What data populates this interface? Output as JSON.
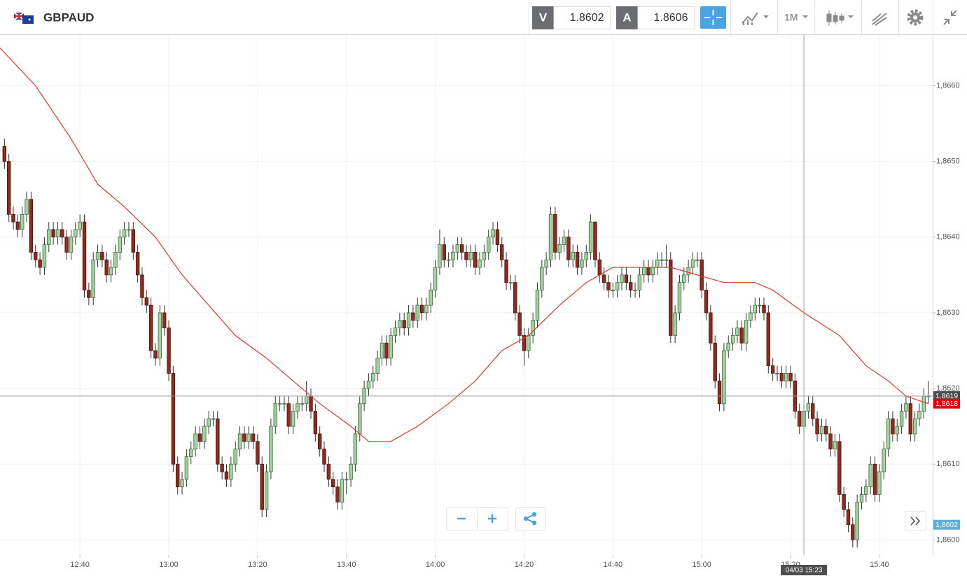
{
  "toolbar": {
    "symbol": "GBPAUD",
    "sell_label": "V",
    "sell_price": 1.8602,
    "buy_label": "A",
    "buy_price": 1.8606,
    "timeframe": "1M"
  },
  "chart_data": {
    "type": "candlestick",
    "x": [
      "12:23",
      "12:24",
      "12:25",
      "12:26",
      "12:27",
      "12:28",
      "12:29",
      "12:30",
      "12:31",
      "12:32",
      "12:33",
      "12:34",
      "12:35",
      "12:36",
      "12:37",
      "12:38",
      "12:39",
      "12:40",
      "12:41",
      "12:42",
      "12:43",
      "12:44",
      "12:45",
      "12:46",
      "12:47",
      "12:48",
      "12:49",
      "12:50",
      "12:51",
      "12:52",
      "12:53",
      "12:54",
      "12:55",
      "12:56",
      "12:57",
      "12:58",
      "12:59",
      "13:00",
      "13:01",
      "13:02",
      "13:03",
      "13:04",
      "13:05",
      "13:06",
      "13:07",
      "13:08",
      "13:09",
      "13:10",
      "13:11",
      "13:12",
      "13:13",
      "13:14",
      "13:15",
      "13:16",
      "13:17",
      "13:18",
      "13:19",
      "13:20",
      "13:21",
      "13:22",
      "13:23",
      "13:24",
      "13:25",
      "13:26",
      "13:27",
      "13:28",
      "13:29",
      "13:30",
      "13:31",
      "13:32",
      "13:33",
      "13:34",
      "13:35",
      "13:36",
      "13:37",
      "13:38",
      "13:39",
      "13:40",
      "13:41",
      "13:42",
      "13:43",
      "13:44",
      "13:45",
      "13:46",
      "13:47",
      "13:48",
      "13:49",
      "13:50",
      "13:51",
      "13:52",
      "13:53",
      "13:54",
      "13:55",
      "13:56",
      "13:57",
      "13:58",
      "13:59",
      "14:00",
      "14:01",
      "14:02",
      "14:03",
      "14:04",
      "14:05",
      "14:06",
      "14:07",
      "14:08",
      "14:09",
      "14:10",
      "14:11",
      "14:12",
      "14:13",
      "14:14",
      "14:15",
      "14:16",
      "14:17",
      "14:18",
      "14:19",
      "14:20",
      "14:21",
      "14:22",
      "14:23",
      "14:24",
      "14:25",
      "14:26",
      "14:27",
      "14:28",
      "14:29",
      "14:30",
      "14:31",
      "14:32",
      "14:33",
      "14:34",
      "14:35",
      "14:36",
      "14:37",
      "14:38",
      "14:39",
      "14:40",
      "14:41",
      "14:42",
      "14:43",
      "14:44",
      "14:45",
      "14:46",
      "14:47",
      "14:48",
      "14:49",
      "14:50",
      "14:51",
      "14:52",
      "14:53",
      "14:54",
      "14:55",
      "14:56",
      "14:57",
      "14:58",
      "14:59",
      "15:00",
      "15:01",
      "15:02",
      "15:03",
      "15:04",
      "15:05",
      "15:06",
      "15:07",
      "15:08",
      "15:09",
      "15:10",
      "15:11",
      "15:12",
      "15:13",
      "15:14",
      "15:15",
      "15:16",
      "15:17",
      "15:18",
      "15:19",
      "15:20",
      "15:21",
      "15:22",
      "15:23",
      "15:24",
      "15:25",
      "15:26",
      "15:27",
      "15:28",
      "15:29",
      "15:30",
      "15:31",
      "15:32",
      "15:33",
      "15:34",
      "15:35",
      "15:36",
      "15:37",
      "15:38",
      "15:39",
      "15:40",
      "15:41",
      "15:42",
      "15:43",
      "15:44",
      "15:45",
      "15:46",
      "15:47",
      "15:48",
      "15:49",
      "15:50",
      "15:51"
    ],
    "open": [
      1.8652,
      1.865,
      1.8643,
      1.8642,
      1.8641,
      1.8643,
      1.8645,
      1.8638,
      1.8637,
      1.8636,
      1.8639,
      1.8641,
      1.864,
      1.8641,
      1.864,
      1.8638,
      1.864,
      1.8641,
      1.8642,
      1.8633,
      1.8632,
      1.8637,
      1.8638,
      1.8637,
      1.8635,
      1.8636,
      1.8638,
      1.864,
      1.8641,
      1.8641,
      1.8638,
      1.8635,
      1.8632,
      1.8631,
      1.8625,
      1.8624,
      1.863,
      1.8628,
      1.8622,
      1.861,
      1.8607,
      1.8608,
      1.8611,
      1.8612,
      1.8614,
      1.8613,
      1.8615,
      1.8616,
      1.8616,
      1.861,
      1.8609,
      1.8608,
      1.861,
      1.8612,
      1.8614,
      1.8613,
      1.8614,
      1.8613,
      1.861,
      1.8604,
      1.8609,
      1.8615,
      1.8618,
      1.8618,
      1.8618,
      1.8615,
      1.8617,
      1.8618,
      1.8618,
      1.8619,
      1.8617,
      1.8614,
      1.8612,
      1.861,
      1.8608,
      1.8607,
      1.8605,
      1.8608,
      1.8608,
      1.861,
      1.8614,
      1.8618,
      1.862,
      1.8621,
      1.8622,
      1.8624,
      1.8626,
      1.8624,
      1.8627,
      1.8628,
      1.8629,
      1.8628,
      1.863,
      1.8629,
      1.8631,
      1.863,
      1.8631,
      1.8633,
      1.8636,
      1.8639,
      1.8637,
      1.8637,
      1.8638,
      1.8639,
      1.8638,
      1.8637,
      1.8638,
      1.8636,
      1.8637,
      1.8638,
      1.864,
      1.8641,
      1.8639,
      1.8637,
      1.8634,
      1.8634,
      1.863,
      1.8627,
      1.8625,
      1.8627,
      1.8629,
      1.8633,
      1.8636,
      1.8637,
      1.8643,
      1.8638,
      1.8639,
      1.864,
      1.8637,
      1.8638,
      1.8636,
      1.8637,
      1.8638,
      1.8642,
      1.8637,
      1.8635,
      1.8634,
      1.8633,
      1.8633,
      1.8634,
      1.8635,
      1.8634,
      1.8633,
      1.8633,
      1.8635,
      1.8636,
      1.8635,
      1.8636,
      1.8637,
      1.8637,
      1.8637,
      1.8627,
      1.863,
      1.8634,
      1.8635,
      1.8636,
      1.8637,
      1.8637,
      1.8633,
      1.863,
      1.8626,
      1.8621,
      1.8618,
      1.8625,
      1.8626,
      1.8627,
      1.8628,
      1.8626,
      1.8629,
      1.863,
      1.8631,
      1.8631,
      1.863,
      1.8623,
      1.8622,
      1.8622,
      1.8621,
      1.8622,
      1.8621,
      1.8617,
      1.8615,
      1.8617,
      1.8618,
      1.8616,
      1.8614,
      1.8615,
      1.8614,
      1.8612,
      1.8613,
      1.8606,
      1.8604,
      1.8602,
      1.86,
      1.8605,
      1.8606,
      1.8607,
      1.861,
      1.8606,
      1.8609,
      1.8612,
      1.8616,
      1.8614,
      1.8615,
      1.8617,
      1.8618,
      1.8614,
      1.8616,
      1.8617,
      1.8619
    ],
    "high": [
      1.8653,
      1.8651,
      1.8644,
      1.8643,
      1.8644,
      1.8646,
      1.8646,
      1.8639,
      1.8638,
      1.864,
      1.8642,
      1.8642,
      1.8642,
      1.8642,
      1.8641,
      1.8641,
      1.8642,
      1.8643,
      1.8643,
      1.8634,
      1.8638,
      1.8639,
      1.8639,
      1.8638,
      1.8637,
      1.8639,
      1.8641,
      1.8642,
      1.8642,
      1.8642,
      1.8639,
      1.8636,
      1.8633,
      1.8632,
      1.8626,
      1.8631,
      1.8631,
      1.8629,
      1.8623,
      1.8611,
      1.8609,
      1.8612,
      1.8613,
      1.8615,
      1.8615,
      1.8616,
      1.8617,
      1.8617,
      1.8617,
      1.8611,
      1.861,
      1.8611,
      1.8613,
      1.8615,
      1.8615,
      1.8615,
      1.8615,
      1.8614,
      1.8611,
      1.861,
      1.8616,
      1.8619,
      1.8619,
      1.8619,
      1.8619,
      1.8618,
      1.8619,
      1.8619,
      1.8621,
      1.862,
      1.8618,
      1.8615,
      1.8613,
      1.8611,
      1.8609,
      1.8608,
      1.8609,
      1.8609,
      1.8611,
      1.8615,
      1.8619,
      1.8621,
      1.8622,
      1.8623,
      1.8625,
      1.8627,
      1.8627,
      1.8628,
      1.8629,
      1.863,
      1.863,
      1.8631,
      1.8631,
      1.8632,
      1.8632,
      1.8632,
      1.8634,
      1.8637,
      1.8641,
      1.864,
      1.8638,
      1.8639,
      1.864,
      1.864,
      1.8639,
      1.8639,
      1.8639,
      1.8638,
      1.8639,
      1.8641,
      1.8642,
      1.8642,
      1.864,
      1.8638,
      1.8635,
      1.8635,
      1.8631,
      1.8628,
      1.8628,
      1.863,
      1.8634,
      1.8637,
      1.8638,
      1.8644,
      1.8644,
      1.864,
      1.8641,
      1.8641,
      1.8639,
      1.8639,
      1.8638,
      1.8639,
      1.8643,
      1.8642,
      1.8638,
      1.8636,
      1.8635,
      1.8634,
      1.8635,
      1.8636,
      1.8636,
      1.8635,
      1.8634,
      1.8636,
      1.8637,
      1.8637,
      1.8637,
      1.8638,
      1.8638,
      1.8639,
      1.8638,
      1.8631,
      1.8635,
      1.8636,
      1.8637,
      1.8638,
      1.8638,
      1.8638,
      1.8634,
      1.8631,
      1.8627,
      1.8622,
      1.8626,
      1.8627,
      1.8628,
      1.8629,
      1.8629,
      1.863,
      1.8631,
      1.8632,
      1.8632,
      1.8632,
      1.8631,
      1.8624,
      1.8623,
      1.8623,
      1.8623,
      1.8623,
      1.8622,
      1.8618,
      1.8618,
      1.8619,
      1.8619,
      1.8617,
      1.8616,
      1.8616,
      1.8615,
      1.8614,
      1.8614,
      1.8607,
      1.8605,
      1.8603,
      1.8606,
      1.8607,
      1.8608,
      1.8611,
      1.8611,
      1.861,
      1.8613,
      1.8617,
      1.8617,
      1.8616,
      1.8618,
      1.8619,
      1.8619,
      1.8617,
      1.8618,
      1.862,
      1.8621
    ],
    "low": [
      1.8649,
      1.8642,
      1.8641,
      1.864,
      1.864,
      1.8642,
      1.8637,
      1.8636,
      1.8635,
      1.8635,
      1.8638,
      1.8639,
      1.8639,
      1.8639,
      1.8637,
      1.8637,
      1.8639,
      1.864,
      1.8632,
      1.8631,
      1.8631,
      1.8636,
      1.8636,
      1.8634,
      1.8634,
      1.8635,
      1.8637,
      1.8639,
      1.864,
      1.8637,
      1.8634,
      1.8631,
      1.863,
      1.8624,
      1.8623,
      1.8623,
      1.8627,
      1.8621,
      1.8609,
      1.8606,
      1.8606,
      1.8607,
      1.861,
      1.8611,
      1.8612,
      1.8612,
      1.8614,
      1.8615,
      1.8609,
      1.8608,
      1.8607,
      1.8607,
      1.8609,
      1.8611,
      1.8612,
      1.8612,
      1.8612,
      1.8609,
      1.8603,
      1.8603,
      1.8608,
      1.8614,
      1.8617,
      1.8617,
      1.8614,
      1.8614,
      1.8616,
      1.8617,
      1.8617,
      1.8616,
      1.8613,
      1.8611,
      1.8609,
      1.8607,
      1.8606,
      1.8604,
      1.8604,
      1.8606,
      1.8607,
      1.8609,
      1.8613,
      1.8617,
      1.8619,
      1.862,
      1.8621,
      1.8623,
      1.8623,
      1.8623,
      1.8626,
      1.8627,
      1.8627,
      1.8627,
      1.8628,
      1.8628,
      1.8629,
      1.8629,
      1.863,
      1.8632,
      1.8635,
      1.8636,
      1.8636,
      1.8636,
      1.8637,
      1.8637,
      1.8636,
      1.8636,
      1.8635,
      1.8635,
      1.8636,
      1.8637,
      1.8639,
      1.8638,
      1.8636,
      1.8633,
      1.8633,
      1.8629,
      1.8626,
      1.8623,
      1.8624,
      1.8626,
      1.8628,
      1.8632,
      1.8635,
      1.8636,
      1.8637,
      1.8637,
      1.8638,
      1.8636,
      1.8636,
      1.8635,
      1.8635,
      1.8636,
      1.8637,
      1.8636,
      1.8634,
      1.8633,
      1.8632,
      1.8632,
      1.8632,
      1.8633,
      1.8633,
      1.8632,
      1.8632,
      1.8632,
      1.8634,
      1.8634,
      1.8634,
      1.8635,
      1.8636,
      1.8636,
      1.8626,
      1.8626,
      1.8629,
      1.8633,
      1.8634,
      1.8635,
      1.8636,
      1.8632,
      1.8629,
      1.8625,
      1.862,
      1.8617,
      1.8617,
      1.8624,
      1.8625,
      1.8626,
      1.8625,
      1.8625,
      1.8628,
      1.8629,
      1.863,
      1.8629,
      1.8622,
      1.8621,
      1.8621,
      1.862,
      1.862,
      1.862,
      1.8616,
      1.8614,
      1.8614,
      1.8616,
      1.8615,
      1.8613,
      1.8613,
      1.8613,
      1.8611,
      1.8611,
      1.8605,
      1.8603,
      1.8601,
      1.8599,
      1.8599,
      1.8604,
      1.8605,
      1.8606,
      1.8605,
      1.8605,
      1.8608,
      1.8611,
      1.8613,
      1.8613,
      1.8614,
      1.8616,
      1.8613,
      1.8613,
      1.8615,
      1.8616,
      1.8618
    ],
    "close": [
      1.865,
      1.8643,
      1.8642,
      1.8641,
      1.8643,
      1.8645,
      1.8638,
      1.8637,
      1.8636,
      1.8639,
      1.8641,
      1.864,
      1.8641,
      1.864,
      1.8638,
      1.864,
      1.8641,
      1.8642,
      1.8633,
      1.8632,
      1.8637,
      1.8638,
      1.8637,
      1.8635,
      1.8636,
      1.8638,
      1.864,
      1.8641,
      1.8641,
      1.8638,
      1.8635,
      1.8632,
      1.8631,
      1.8625,
      1.8624,
      1.863,
      1.8628,
      1.8622,
      1.861,
      1.8607,
      1.8608,
      1.8611,
      1.8612,
      1.8614,
      1.8613,
      1.8615,
      1.8616,
      1.8616,
      1.861,
      1.8609,
      1.8608,
      1.861,
      1.8612,
      1.8614,
      1.8613,
      1.8614,
      1.8613,
      1.861,
      1.8604,
      1.8609,
      1.8615,
      1.8618,
      1.8618,
      1.8618,
      1.8615,
      1.8617,
      1.8618,
      1.8618,
      1.8619,
      1.8617,
      1.8614,
      1.8612,
      1.861,
      1.8608,
      1.8607,
      1.8605,
      1.8608,
      1.8608,
      1.861,
      1.8614,
      1.8618,
      1.862,
      1.8621,
      1.8622,
      1.8624,
      1.8626,
      1.8624,
      1.8627,
      1.8628,
      1.8629,
      1.8628,
      1.863,
      1.8629,
      1.8631,
      1.863,
      1.8631,
      1.8633,
      1.8636,
      1.8639,
      1.8637,
      1.8637,
      1.8638,
      1.8639,
      1.8638,
      1.8637,
      1.8638,
      1.8636,
      1.8637,
      1.8638,
      1.864,
      1.8641,
      1.8639,
      1.8637,
      1.8634,
      1.8634,
      1.863,
      1.8627,
      1.8625,
      1.8627,
      1.8629,
      1.8633,
      1.8636,
      1.8637,
      1.8643,
      1.8638,
      1.8639,
      1.864,
      1.8637,
      1.8638,
      1.8636,
      1.8637,
      1.8638,
      1.8642,
      1.8637,
      1.8635,
      1.8634,
      1.8633,
      1.8633,
      1.8634,
      1.8635,
      1.8634,
      1.8633,
      1.8633,
      1.8635,
      1.8636,
      1.8635,
      1.8636,
      1.8637,
      1.8637,
      1.8637,
      1.8627,
      1.863,
      1.8634,
      1.8635,
      1.8636,
      1.8637,
      1.8637,
      1.8633,
      1.863,
      1.8626,
      1.8621,
      1.8618,
      1.8625,
      1.8626,
      1.8627,
      1.8628,
      1.8626,
      1.8629,
      1.863,
      1.8631,
      1.8631,
      1.863,
      1.8623,
      1.8622,
      1.8622,
      1.8621,
      1.8622,
      1.8621,
      1.8617,
      1.8615,
      1.8617,
      1.8618,
      1.8616,
      1.8614,
      1.8615,
      1.8614,
      1.8612,
      1.8613,
      1.8606,
      1.8604,
      1.8602,
      1.86,
      1.8605,
      1.8606,
      1.8607,
      1.861,
      1.8606,
      1.8609,
      1.8612,
      1.8616,
      1.8614,
      1.8615,
      1.8617,
      1.8618,
      1.8614,
      1.8616,
      1.8617,
      1.8619,
      1.8619
    ],
    "up_color": "#a3d1a0",
    "down_color": "#8e2b1f",
    "ma": {
      "color": "#e0372b",
      "x": [
        "12:22",
        "12:30",
        "12:38",
        "12:44",
        "12:50",
        "12:57",
        "13:03",
        "13:09",
        "13:15",
        "13:22",
        "13:28",
        "13:34",
        "13:41",
        "13:45",
        "13:50",
        "13:56",
        "14:03",
        "14:09",
        "14:15",
        "14:21",
        "14:28",
        "14:34",
        "14:40",
        "14:47",
        "14:53",
        "14:59",
        "15:05",
        "15:12",
        "15:16",
        "15:23",
        "15:31",
        "15:37",
        "15:42",
        "15:46",
        "15:51"
      ],
      "values": [
        1.8665,
        1.866,
        1.8653,
        1.8647,
        1.8644,
        1.864,
        1.8635,
        1.8631,
        1.8627,
        1.8624,
        1.8621,
        1.8618,
        1.8615,
        1.8613,
        1.8613,
        1.8615,
        1.8618,
        1.8621,
        1.8625,
        1.8627,
        1.8631,
        1.8634,
        1.8636,
        1.8636,
        1.8636,
        1.8635,
        1.8634,
        1.8634,
        1.8633,
        1.863,
        1.8627,
        1.8623,
        1.8621,
        1.8619,
        1.8618
      ]
    },
    "xlim": [
      "12:22",
      "15:52"
    ],
    "ylim": [
      1.8598,
      1.86667
    ],
    "xticks": [
      "12:40",
      "13:00",
      "13:20",
      "13:40",
      "14:00",
      "14:20",
      "14:40",
      "15:00",
      "15:20",
      "15:40"
    ],
    "yticks": [
      {
        "value": 1.86,
        "label": "1,8600"
      },
      {
        "value": 1.861,
        "label": "1,8610"
      },
      {
        "value": 1.862,
        "label": "1,8620"
      },
      {
        "value": 1.863,
        "label": "1,8630"
      },
      {
        "value": 1.864,
        "label": "1,8640"
      },
      {
        "value": 1.865,
        "label": "1,8650"
      },
      {
        "value": 1.866,
        "label": "1,8660"
      }
    ],
    "grid": true,
    "price_tags": [
      {
        "value": 1.8619,
        "label": "1,8619",
        "color": "#4d4d4d",
        "line": true
      },
      {
        "value": 1.8618,
        "label": "1,8618",
        "color": "#e00000",
        "line": false
      },
      {
        "value": 1.8602,
        "label": "1,8602",
        "color": "#62acd8",
        "line": false
      }
    ],
    "crosshair": {
      "x": "15:23",
      "label": "04/03 15:23"
    }
  }
}
